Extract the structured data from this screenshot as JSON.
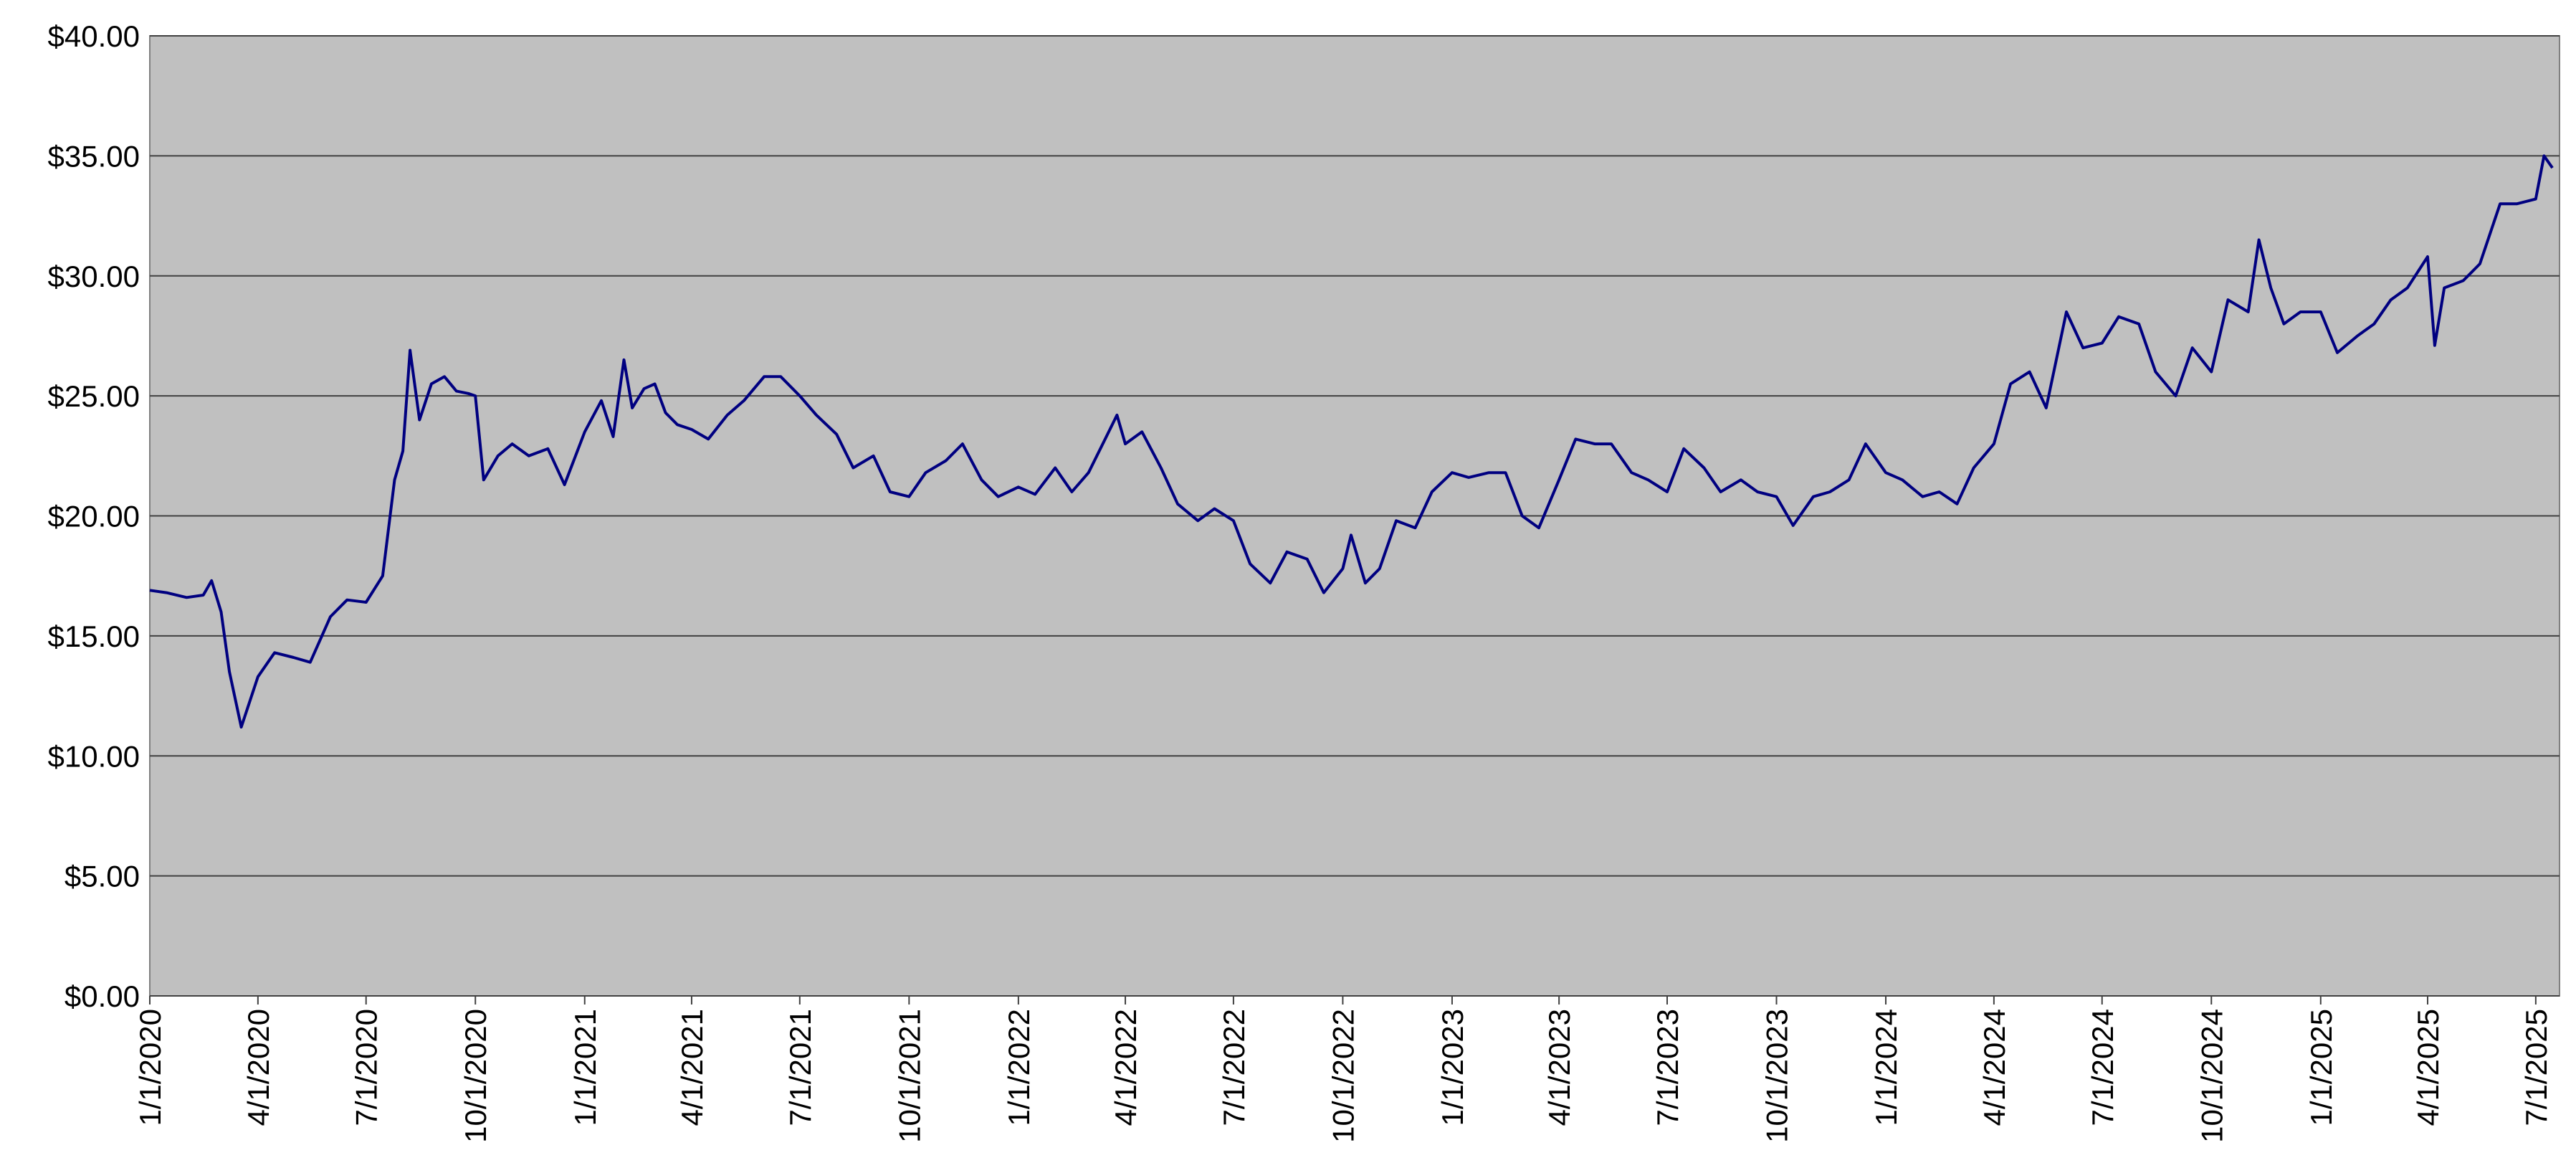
{
  "chart_data": {
    "type": "line",
    "x": [
      "1/1/2020",
      "1/15/2020",
      "2/1/2020",
      "2/15/2020",
      "2/22/2020",
      "3/1/2020",
      "3/8/2020",
      "3/18/2020",
      "4/1/2020",
      "4/15/2020",
      "5/1/2020",
      "5/15/2020",
      "6/1/2020",
      "6/15/2020",
      "7/1/2020",
      "7/15/2020",
      "7/25/2020",
      "8/1/2020",
      "8/7/2020",
      "8/15/2020",
      "8/25/2020",
      "9/5/2020",
      "9/15/2020",
      "9/25/2020",
      "10/1/2020",
      "10/8/2020",
      "10/20/2020",
      "11/1/2020",
      "11/15/2020",
      "12/1/2020",
      "12/15/2020",
      "1/1/2021",
      "1/15/2021",
      "1/25/2021",
      "2/3/2021",
      "2/10/2021",
      "2/20/2021",
      "3/1/2021",
      "3/10/2021",
      "3/20/2021",
      "4/1/2021",
      "4/15/2021",
      "5/1/2021",
      "5/15/2021",
      "6/1/2021",
      "6/15/2021",
      "7/1/2021",
      "7/15/2021",
      "8/1/2021",
      "8/15/2021",
      "9/1/2021",
      "9/15/2021",
      "10/1/2021",
      "10/15/2021",
      "11/1/2021",
      "11/15/2021",
      "12/1/2021",
      "12/15/2021",
      "1/1/2022",
      "1/15/2022",
      "2/1/2022",
      "2/15/2022",
      "3/1/2022",
      "3/15/2022",
      "3/25/2022",
      "4/1/2022",
      "4/15/2022",
      "5/1/2022",
      "5/15/2022",
      "6/1/2022",
      "6/15/2022",
      "7/1/2022",
      "7/15/2022",
      "8/1/2022",
      "8/15/2022",
      "9/1/2022",
      "9/15/2022",
      "10/1/2022",
      "10/8/2022",
      "10/20/2022",
      "11/1/2022",
      "11/15/2022",
      "12/1/2022",
      "12/15/2022",
      "1/1/2023",
      "1/15/2023",
      "2/1/2023",
      "2/15/2023",
      "3/1/2023",
      "3/15/2023",
      "4/1/2023",
      "4/15/2023",
      "5/1/2023",
      "5/15/2023",
      "6/1/2023",
      "6/15/2023",
      "7/1/2023",
      "7/15/2023",
      "8/1/2023",
      "8/15/2023",
      "9/1/2023",
      "9/15/2023",
      "10/1/2023",
      "10/15/2023",
      "11/1/2023",
      "11/15/2023",
      "12/1/2023",
      "12/15/2023",
      "1/1/2024",
      "1/15/2024",
      "2/1/2024",
      "2/15/2024",
      "3/1/2024",
      "3/15/2024",
      "4/1/2024",
      "4/15/2024",
      "5/1/2024",
      "5/15/2024",
      "6/1/2024",
      "6/15/2024",
      "7/1/2024",
      "7/15/2024",
      "8/1/2024",
      "8/15/2024",
      "9/1/2024",
      "9/15/2024",
      "10/1/2024",
      "10/15/2024",
      "11/1/2024",
      "11/10/2024",
      "11/20/2024",
      "12/1/2024",
      "12/15/2024",
      "1/1/2025",
      "1/15/2025",
      "2/1/2025",
      "2/15/2025",
      "3/1/2025",
      "3/15/2025",
      "4/1/2025",
      "4/7/2025",
      "4/15/2025",
      "5/1/2025",
      "5/15/2025",
      "6/1/2025",
      "6/15/2025",
      "7/1/2025",
      "7/8/2025",
      "7/15/2025"
    ],
    "values": [
      16.9,
      16.8,
      16.6,
      16.7,
      17.3,
      16.0,
      13.5,
      11.2,
      13.3,
      14.3,
      14.1,
      13.9,
      15.8,
      16.5,
      16.4,
      17.5,
      21.5,
      22.7,
      26.9,
      24.0,
      25.5,
      25.8,
      25.2,
      25.1,
      25.0,
      21.5,
      22.5,
      23.0,
      22.5,
      22.8,
      21.3,
      23.5,
      24.8,
      23.3,
      26.5,
      24.5,
      25.3,
      25.5,
      24.3,
      23.8,
      23.6,
      23.2,
      24.2,
      24.8,
      25.8,
      25.8,
      25.0,
      24.2,
      23.4,
      22.0,
      22.5,
      21.0,
      20.8,
      21.8,
      22.3,
      23.0,
      21.5,
      20.8,
      21.2,
      20.9,
      22.0,
      21.0,
      21.8,
      23.2,
      24.2,
      23.0,
      23.5,
      22.0,
      20.5,
      19.8,
      20.3,
      19.8,
      18.0,
      17.2,
      18.5,
      18.2,
      16.8,
      17.8,
      19.2,
      17.2,
      17.8,
      19.8,
      19.5,
      21.0,
      21.8,
      21.6,
      21.8,
      21.8,
      20.0,
      19.5,
      21.5,
      23.2,
      23.0,
      23.0,
      21.8,
      21.5,
      21.0,
      22.8,
      22.0,
      21.0,
      21.5,
      21.0,
      20.8,
      19.6,
      20.8,
      21.0,
      21.5,
      23.0,
      21.8,
      21.5,
      20.8,
      21.0,
      20.5,
      22.0,
      23.0,
      25.5,
      26.0,
      24.5,
      28.5,
      27.0,
      27.2,
      28.3,
      28.0,
      26.0,
      25.0,
      27.0,
      26.0,
      29.0,
      28.5,
      31.5,
      29.5,
      28.0,
      28.5,
      28.5,
      26.8,
      27.5,
      28.0,
      29.0,
      29.5,
      30.8,
      27.1,
      29.5,
      29.8,
      30.5,
      33.0,
      33.0,
      33.2,
      35.0,
      34.5
    ],
    "color": "#000080",
    "xlim": [
      "1/1/2020",
      "7/21/2025"
    ],
    "xticks": [
      "1/1/2020",
      "4/1/2020",
      "7/1/2020",
      "10/1/2020",
      "1/1/2021",
      "4/1/2021",
      "7/1/2021",
      "10/1/2021",
      "1/1/2022",
      "4/1/2022",
      "7/1/2022",
      "10/1/2022",
      "1/1/2023",
      "4/1/2023",
      "7/1/2023",
      "10/1/2023",
      "1/1/2024",
      "4/1/2024",
      "7/1/2024",
      "10/1/2024",
      "1/1/2025",
      "4/1/2025",
      "7/1/2025"
    ],
    "ylim": [
      0,
      40
    ],
    "yticks": [
      {
        "value": 0,
        "label": "$0.00"
      },
      {
        "value": 5,
        "label": "$5.00"
      },
      {
        "value": 10,
        "label": "$10.00"
      },
      {
        "value": 15,
        "label": "$15.00"
      },
      {
        "value": 20,
        "label": "$20.00"
      },
      {
        "value": 25,
        "label": "$25.00"
      },
      {
        "value": 30,
        "label": "$30.00"
      },
      {
        "value": 35,
        "label": "$35.00"
      },
      {
        "value": 40,
        "label": "$40.00"
      }
    ],
    "grid": true
  }
}
